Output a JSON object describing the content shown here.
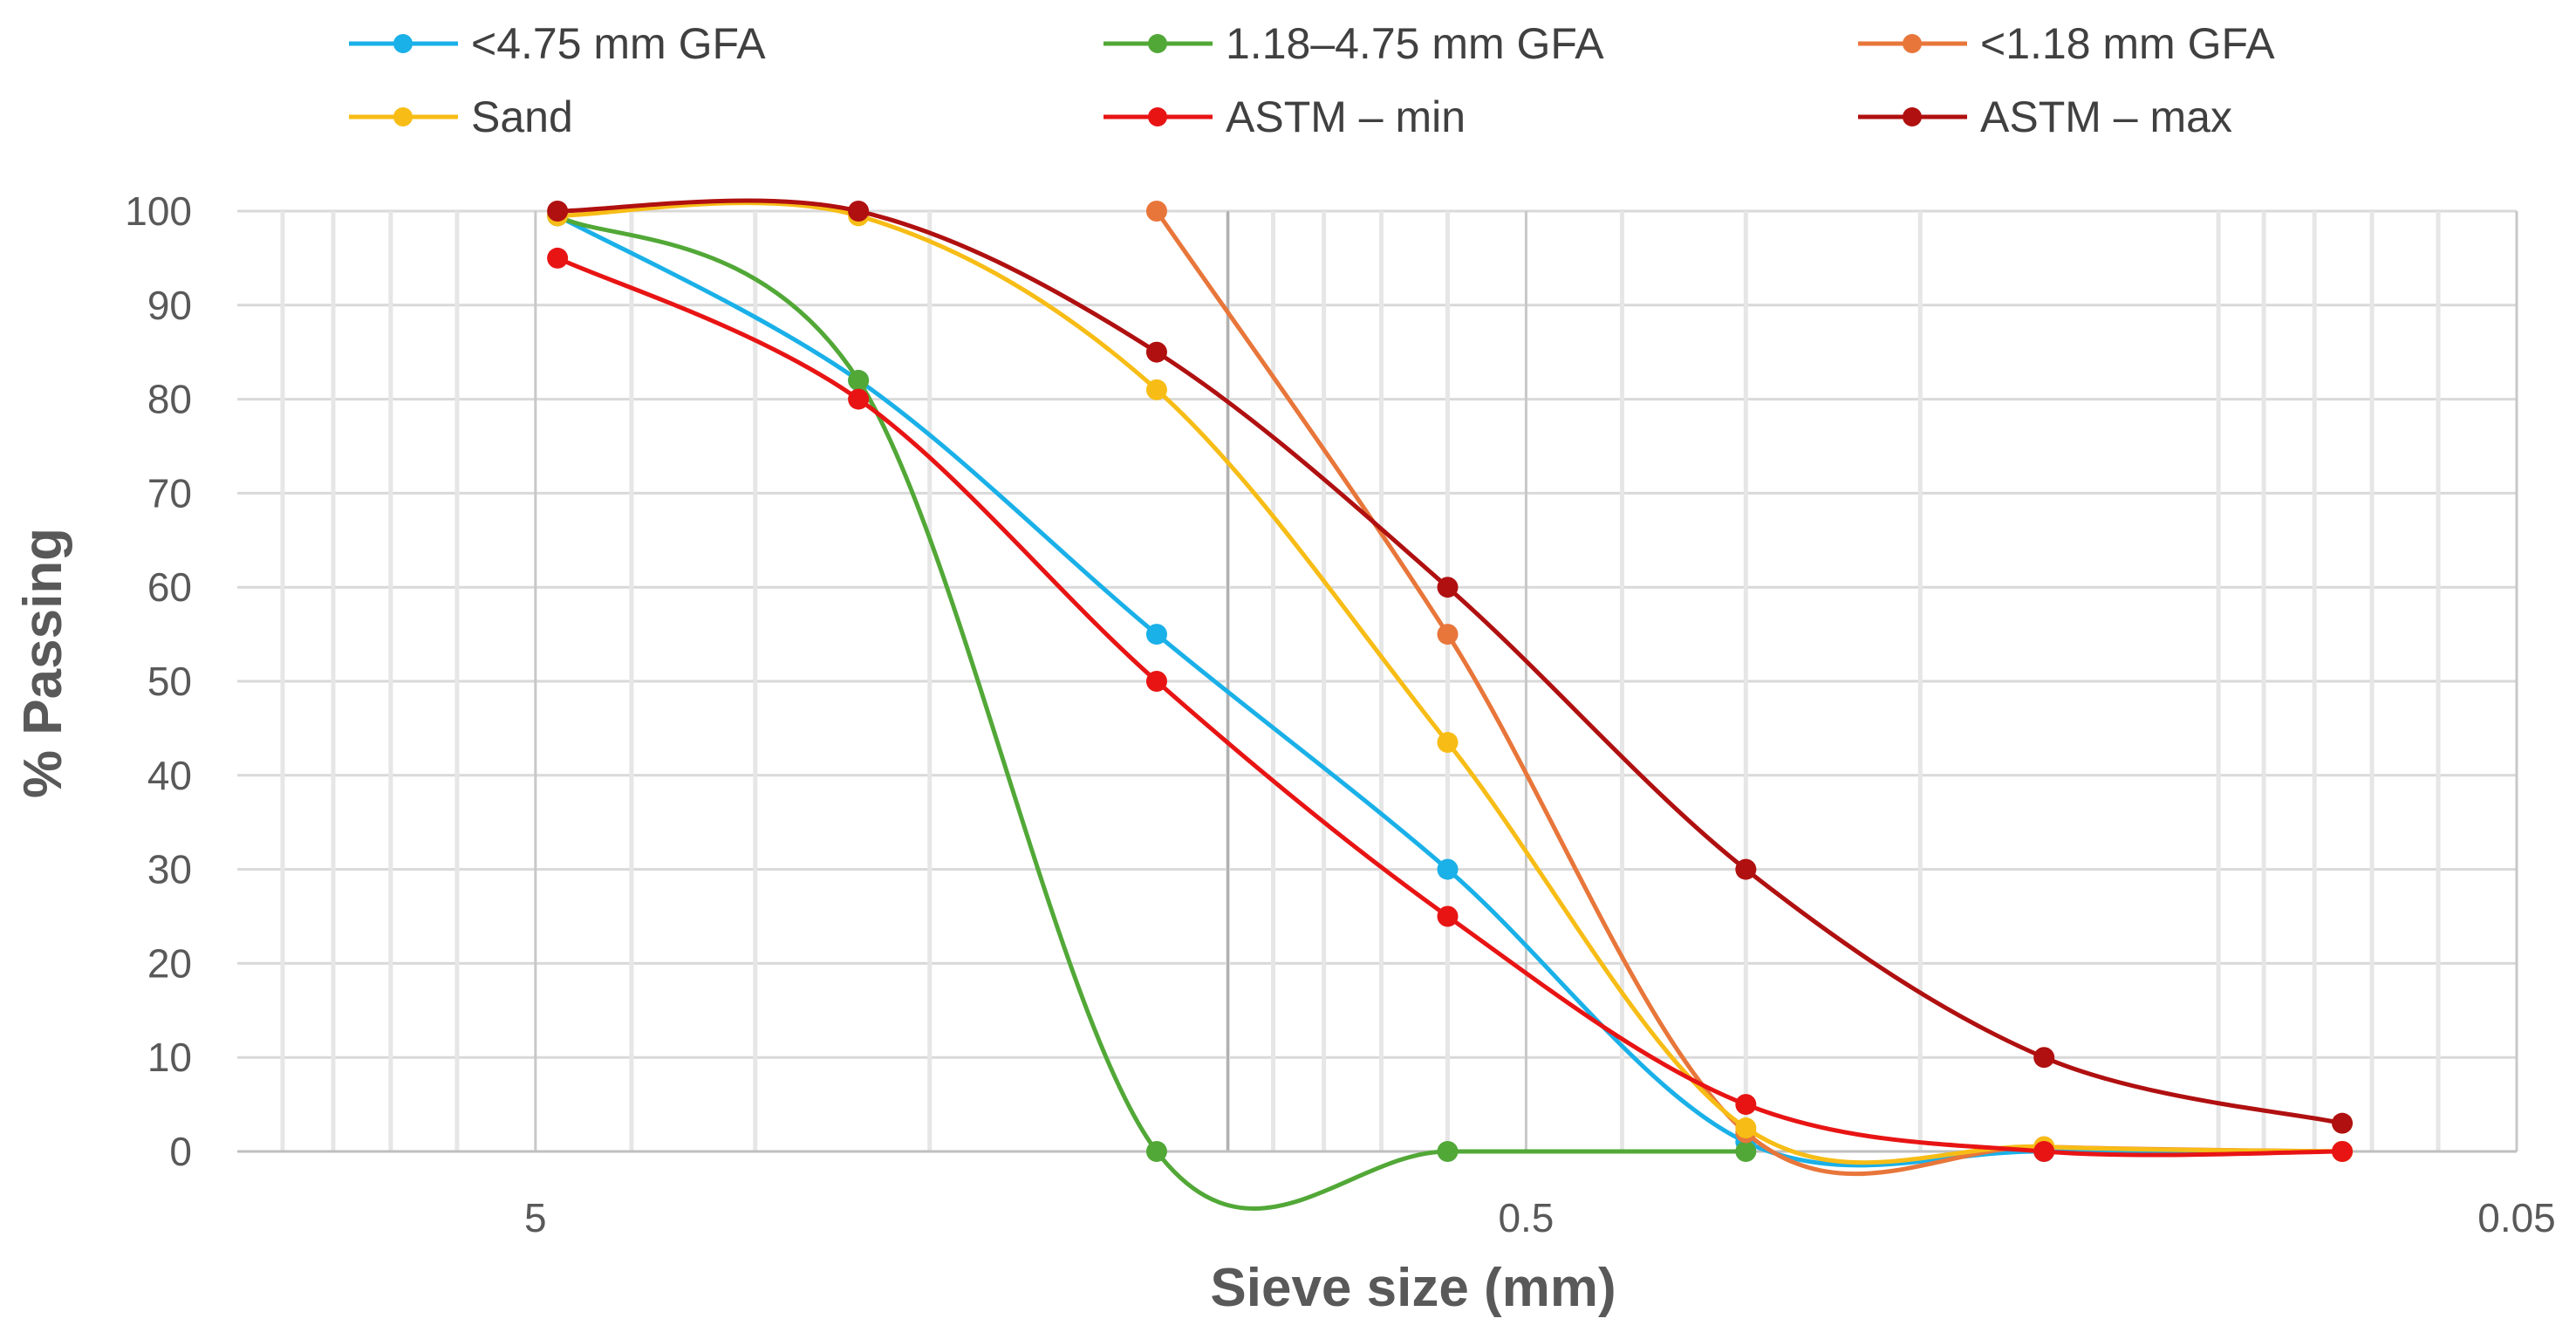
{
  "chart_data": {
    "type": "line",
    "title": "",
    "xlabel": "Sieve size (mm)",
    "ylabel": "% Passing",
    "x_scale": "log",
    "x_reversed": true,
    "xlim": [
      10,
      0.05
    ],
    "ylim": [
      0,
      100
    ],
    "x_ticks": [
      {
        "value": 5,
        "label": "5"
      },
      {
        "value": 0.5,
        "label": "0.5"
      },
      {
        "value": 0.05,
        "label": "0.05"
      }
    ],
    "y_ticks": [
      0,
      10,
      20,
      30,
      40,
      50,
      60,
      70,
      80,
      90,
      100
    ],
    "y_tick_labels": [
      "0",
      "10",
      "20",
      "30",
      "40",
      "50",
      "60",
      "70",
      "80",
      "90",
      "100"
    ],
    "grid": true,
    "legend_position": "top",
    "series": [
      {
        "name": "<4.75 mm GFA",
        "color": "#1ab0e8",
        "x": [
          4.75,
          2.36,
          1.18,
          0.6,
          0.3,
          0.15,
          0.075
        ],
        "y": [
          99.5,
          82,
          55,
          30,
          1,
          0,
          0
        ]
      },
      {
        "name": "1.18–4.75 mm GFA",
        "color": "#52a837",
        "x": [
          4.75,
          2.36,
          1.18,
          0.6,
          0.3
        ],
        "y": [
          99.5,
          82,
          0,
          0,
          0
        ]
      },
      {
        "name": "<1.18 mm GFA",
        "color": "#e8763a",
        "x": [
          1.18,
          0.6,
          0.3,
          0.15,
          0.075
        ],
        "y": [
          100,
          55,
          2,
          0.5,
          0
        ]
      },
      {
        "name": "Sand",
        "color": "#f7bd16",
        "x": [
          4.75,
          2.36,
          1.18,
          0.6,
          0.3,
          0.15,
          0.075
        ],
        "y": [
          99.5,
          99.5,
          81,
          43.5,
          2.5,
          0.5,
          0
        ]
      },
      {
        "name": "ASTM – min",
        "color": "#e81414",
        "x": [
          4.75,
          2.36,
          1.18,
          0.6,
          0.3,
          0.15,
          0.075
        ],
        "y": [
          95,
          80,
          50,
          25,
          5,
          0,
          0
        ]
      },
      {
        "name": "ASTM – max",
        "color": "#b01010",
        "x": [
          4.75,
          2.36,
          1.18,
          0.6,
          0.3,
          0.15,
          0.075
        ],
        "y": [
          100,
          100,
          85,
          60,
          30,
          10,
          3
        ]
      }
    ]
  }
}
